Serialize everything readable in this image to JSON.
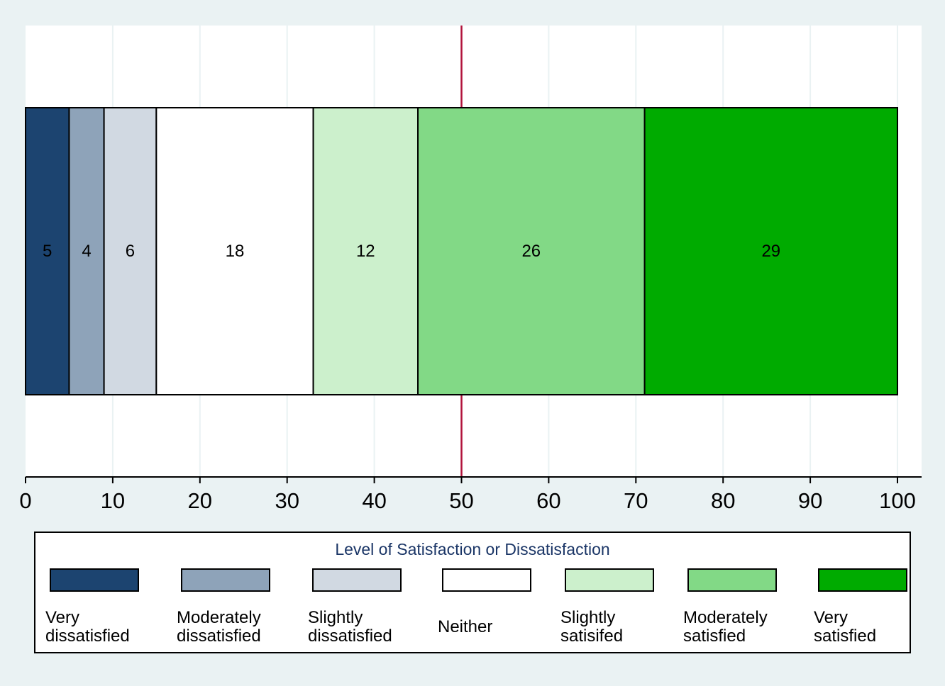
{
  "chart_data": {
    "type": "bar",
    "orientation": "horizontal-stacked",
    "title": "",
    "xlabel": "",
    "ylabel": "",
    "xlim": [
      0,
      100
    ],
    "x_ticks": [
      0,
      10,
      20,
      30,
      40,
      50,
      60,
      70,
      80,
      90,
      100
    ],
    "reference_line": {
      "x": 50,
      "color": "#b2153d"
    },
    "grid": true,
    "series": [
      {
        "name": "Very dissatisfied",
        "value": 5,
        "color": "#1c4470"
      },
      {
        "name": "Moderately dissatisfied",
        "value": 4,
        "color": "#8ea3b9"
      },
      {
        "name": "Slightly dissatisfied",
        "value": 6,
        "color": "#d1d9e2"
      },
      {
        "name": "Neither",
        "value": 18,
        "color": "#ffffff"
      },
      {
        "name": "Slightly satisifed",
        "value": 12,
        "color": "#ccf0cc"
      },
      {
        "name": "Moderately satisfied",
        "value": 26,
        "color": "#82d986"
      },
      {
        "name": "Very satisfied",
        "value": 29,
        "color": "#00ab00"
      }
    ],
    "legend": {
      "title": "Level of Satisfaction or Dissatisfaction",
      "position": "bottom",
      "labels": [
        [
          "Very",
          "dissatisfied"
        ],
        [
          "Moderately",
          "dissatisfied"
        ],
        [
          "Slightly",
          "dissatisfied"
        ],
        [
          "Neither"
        ],
        [
          "Slightly",
          "satisifed"
        ],
        [
          "Moderately",
          "satisfied"
        ],
        [
          "Very",
          "satisfied"
        ]
      ]
    }
  }
}
